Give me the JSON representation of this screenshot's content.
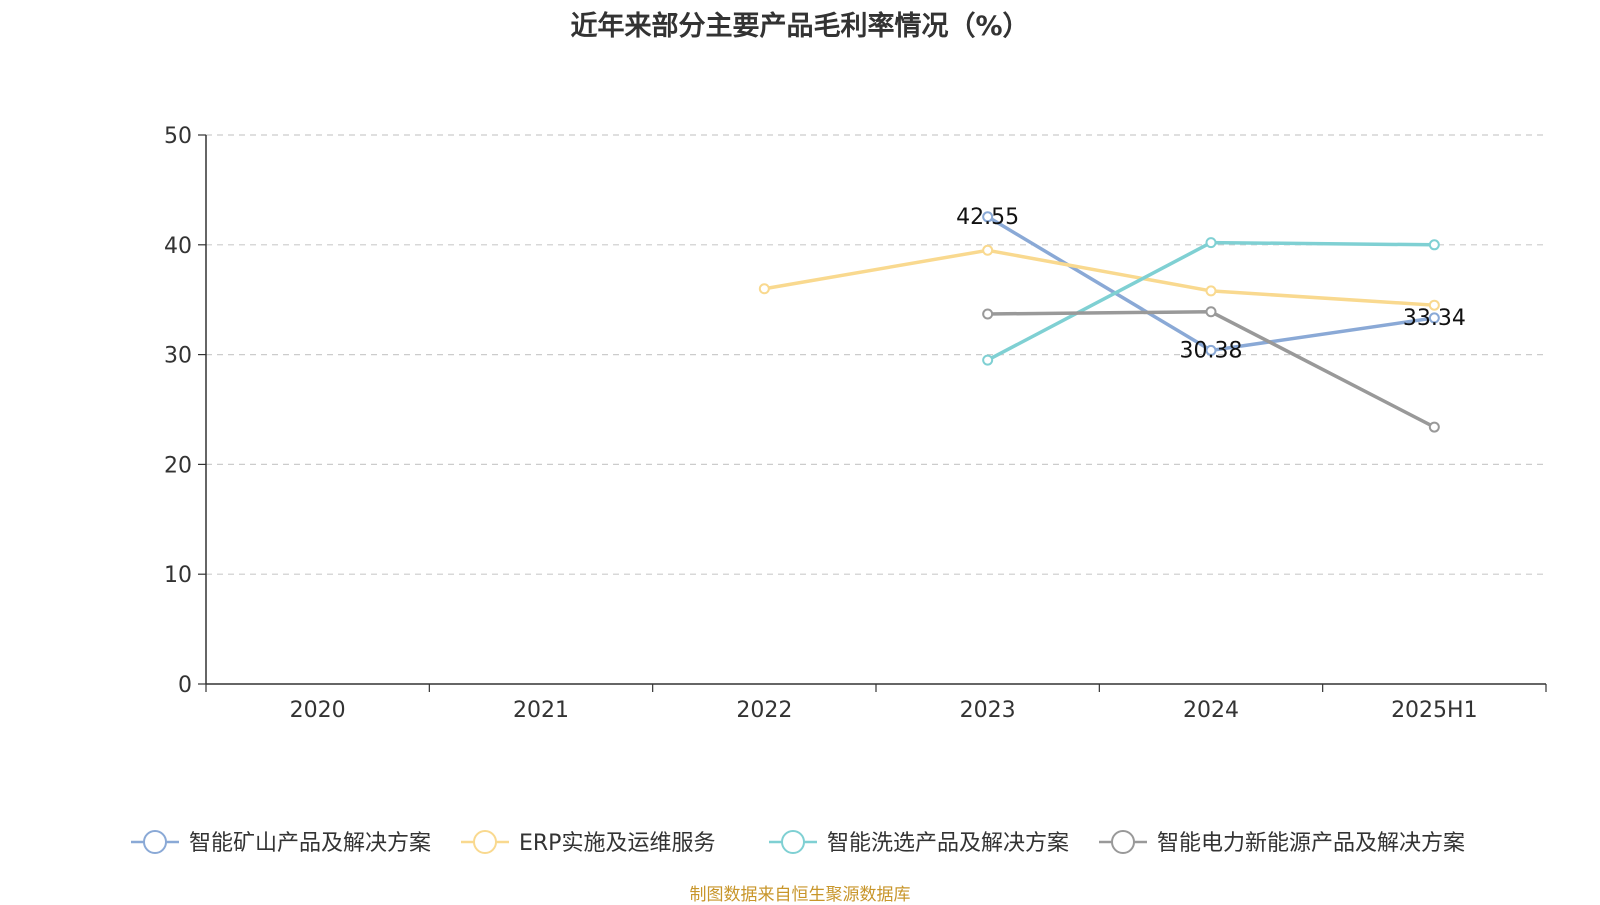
{
  "chart_data": {
    "type": "line",
    "title": "近年来部分主要产品毛利率情况（%）",
    "categories": [
      "2020",
      "2021",
      "2022",
      "2023",
      "2024",
      "2025H1"
    ],
    "ylim": [
      0,
      50
    ],
    "yticks": [
      0,
      10,
      20,
      30,
      40,
      50
    ],
    "grid": true,
    "legend_position": "bottom",
    "series": [
      {
        "name": "智能矿山产品及解决方案",
        "color": "#8aa9d6",
        "values": [
          null,
          null,
          null,
          42.55,
          30.38,
          33.34
        ],
        "labels": [
          null,
          null,
          null,
          "42.55",
          "30.38",
          "33.34"
        ]
      },
      {
        "name": "ERP实施及运维服务",
        "color": "#f9d98f",
        "values": [
          null,
          null,
          36.0,
          39.5,
          35.8,
          34.5
        ],
        "labels": [
          null,
          null,
          null,
          null,
          null,
          null
        ]
      },
      {
        "name": "智能洗选产品及解决方案",
        "color": "#7fd0d3",
        "values": [
          null,
          null,
          null,
          29.5,
          40.2,
          40.0
        ],
        "labels": [
          null,
          null,
          null,
          null,
          null,
          null
        ]
      },
      {
        "name": "智能电力新能源产品及解决方案",
        "color": "#999999",
        "values": [
          null,
          null,
          null,
          33.7,
          33.9,
          23.4
        ],
        "labels": [
          null,
          null,
          null,
          null,
          null,
          null
        ]
      }
    ]
  },
  "source": "制图数据来自恒生聚源数据库"
}
